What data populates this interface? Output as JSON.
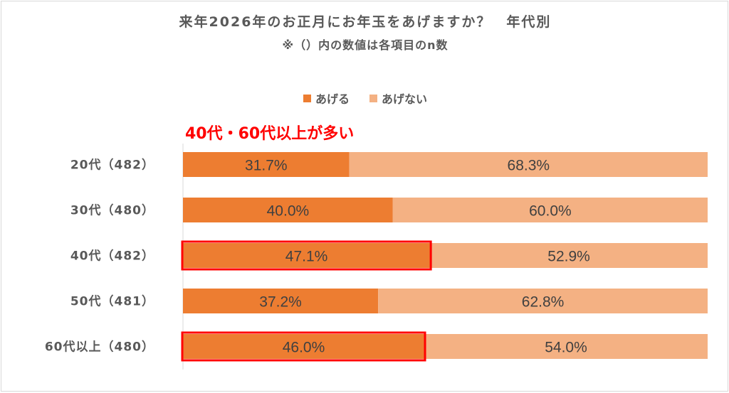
{
  "title": "来年2026年のお正月にお年玉をあげますか？　年代別",
  "subtitle": "※（）内の数値は各項目のn数",
  "annotation": "40代・60代以上が多い",
  "colors": {
    "give": "#ed7d31",
    "not_give": "#f4b183",
    "highlight": "#ff0000",
    "label_text": "#404040",
    "axis_text": "#595959"
  },
  "chart_data": {
    "type": "bar",
    "orientation": "horizontal",
    "stacked": true,
    "percent": true,
    "categories": [
      "20代（482）",
      "30代（480）",
      "40代（482）",
      "50代（481）",
      "60代以上（480）"
    ],
    "series": [
      {
        "name": "あげる",
        "values": [
          31.7,
          40.0,
          47.1,
          37.2,
          46.0
        ],
        "labels": [
          "31.7%",
          "40.0%",
          "47.1%",
          "37.2%",
          "46.0%"
        ]
      },
      {
        "name": "あげない",
        "values": [
          68.3,
          60.0,
          52.9,
          62.8,
          54.0
        ],
        "labels": [
          "68.3%",
          "60.0%",
          "52.9%",
          "62.8%",
          "54.0%"
        ]
      }
    ],
    "highlighted": [
      "40代（482）",
      "60代以上（480）"
    ],
    "xlim": [
      0,
      100
    ],
    "legend": "top",
    "grid": false
  }
}
